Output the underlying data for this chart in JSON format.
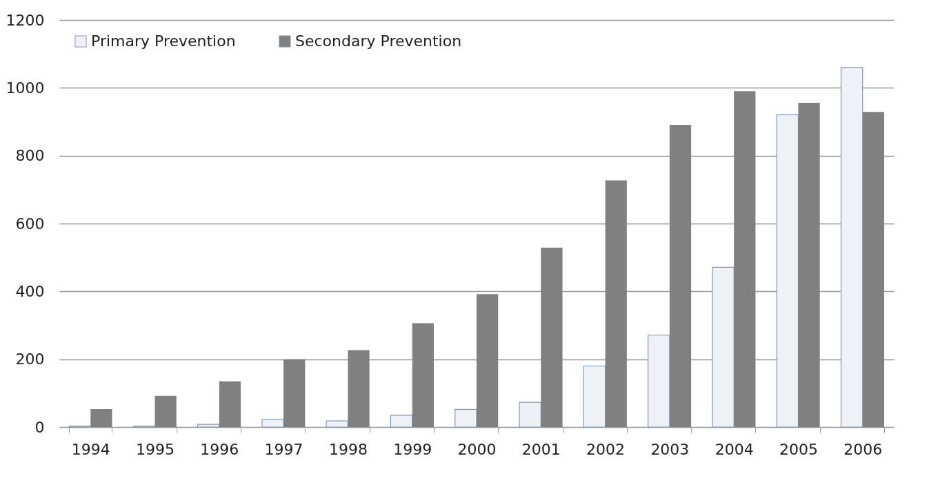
{
  "chart_data": {
    "type": "bar",
    "categories": [
      "1994",
      "1995",
      "1996",
      "1997",
      "1998",
      "1999",
      "2000",
      "2001",
      "2002",
      "2003",
      "2004",
      "2005",
      "2006"
    ],
    "series": [
      {
        "name": "Primary Prevention",
        "color": "#eef1f5",
        "values": [
          3,
          3,
          8,
          22,
          18,
          35,
          52,
          73,
          180,
          271,
          471,
          921,
          1060
        ]
      },
      {
        "name": "Secondary Prevention",
        "color": "#808080",
        "values": [
          53,
          92,
          135,
          200,
          227,
          306,
          392,
          529,
          727,
          891,
          990,
          956,
          929
        ]
      }
    ],
    "ylim": [
      0,
      1200
    ],
    "yticks": [
      0,
      200,
      400,
      600,
      800,
      1000,
      1200
    ],
    "grid": "y",
    "legend": "top left"
  }
}
